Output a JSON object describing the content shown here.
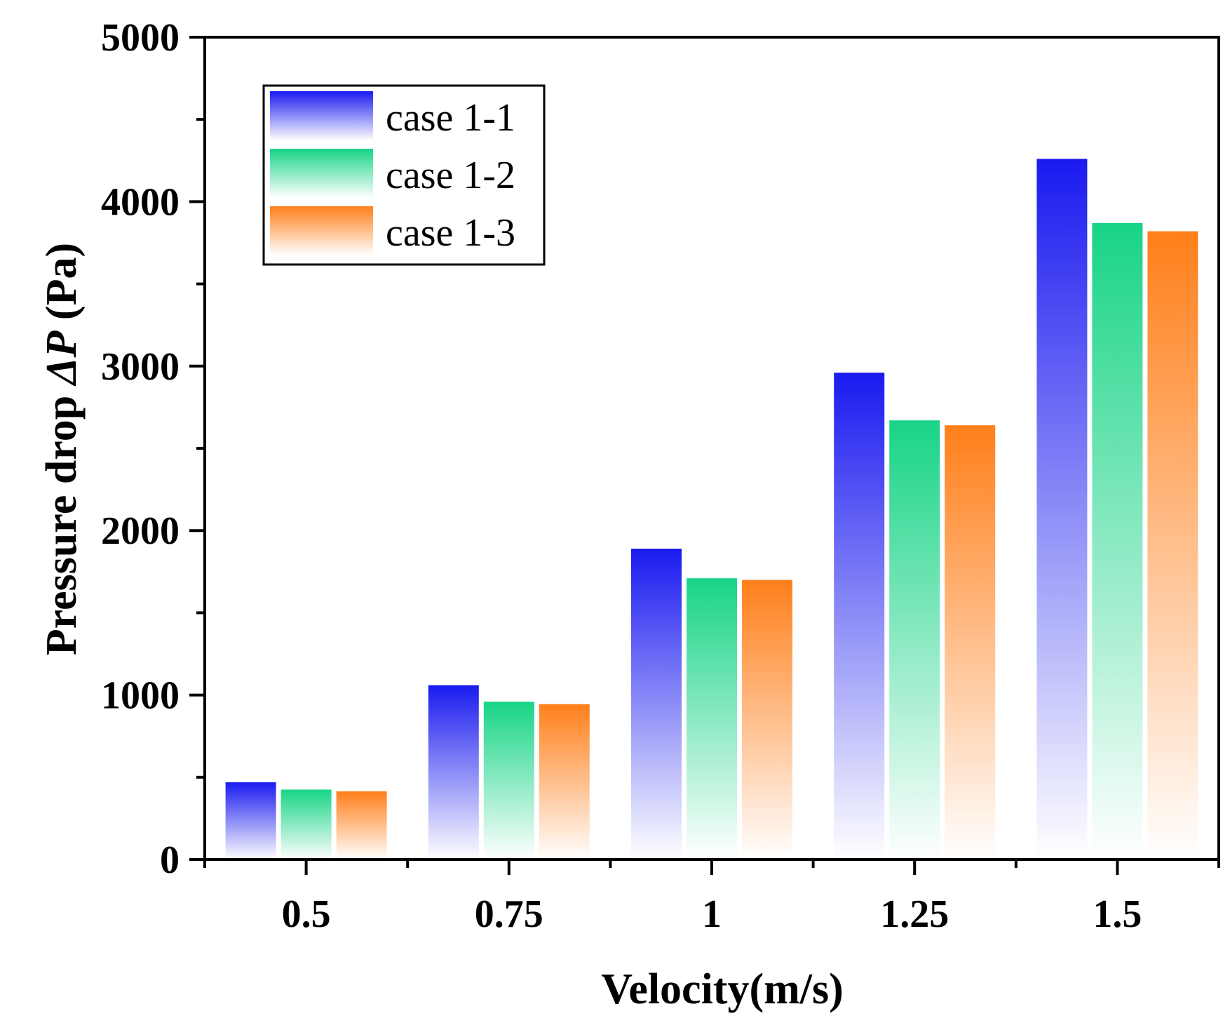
{
  "chart_data": {
    "type": "bar",
    "title": "",
    "xlabel": "Velocity(m/s)",
    "ylabel_prefix": "Pressure drop ",
    "ylabel_symbol": "ΔP",
    "ylabel_suffix": " (Pa)",
    "categories": [
      "0.5",
      "0.75",
      "1",
      "1.25",
      "1.5"
    ],
    "series": [
      {
        "name": "case 1-1",
        "color": "#1a1af0",
        "values": [
          470,
          1060,
          1890,
          2960,
          4260
        ]
      },
      {
        "name": "case 1-2",
        "color": "#18d486",
        "values": [
          425,
          960,
          1710,
          2670,
          3870
        ]
      },
      {
        "name": "case 1-3",
        "color": "#ff7f1a",
        "values": [
          415,
          945,
          1700,
          2640,
          3820
        ]
      }
    ],
    "yticks": [
      0,
      1000,
      2000,
      3000,
      4000,
      5000
    ],
    "ylim": [
      0,
      5000
    ],
    "legend_position": "top-left",
    "grid": false
  }
}
